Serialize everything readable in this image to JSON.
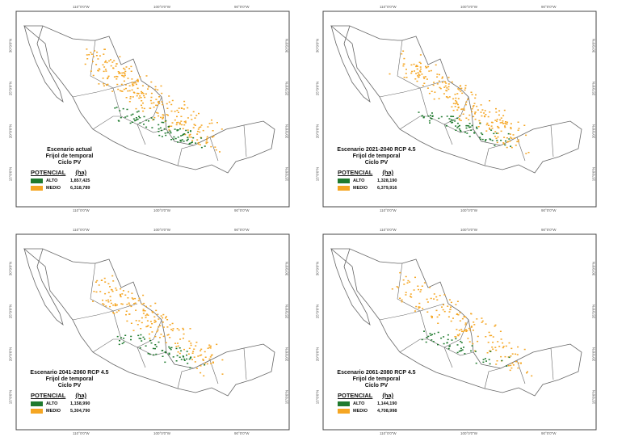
{
  "colors": {
    "alto": "#1f7a2e",
    "medio": "#f5a623",
    "border": "#666666"
  },
  "axis": {
    "lon": [
      "110°0'0\"W",
      "100°0'0\"W",
      "90°0'0\"W"
    ],
    "lat": [
      "30°0'0\"N",
      "25°0'0\"N",
      "20°0'0\"N",
      "15°0'0\"N"
    ]
  },
  "legend_header": {
    "potencial": "POTENCIAL",
    "unit": "(ha)"
  },
  "panels": [
    {
      "title": "Escenario actual",
      "crop": "Frijol de temporal",
      "cycle": "Ciclo PV",
      "items": [
        {
          "label": "ALTO",
          "value": "1,857,425"
        },
        {
          "label": "MEDIO",
          "value": "6,318,789"
        }
      ]
    },
    {
      "title": "Escenario 2021-2040 RCP 4.5",
      "crop": "Frijol de temporal",
      "cycle": "Ciclo PV",
      "items": [
        {
          "label": "ALTO",
          "value": "1,328,190"
        },
        {
          "label": "MEDIO",
          "value": "6,379,916"
        }
      ]
    },
    {
      "title": "Escenario 2041-2060 RCP 4.5",
      "crop": "Frijol de temporal",
      "cycle": "Ciclo PV",
      "items": [
        {
          "label": "ALTO",
          "value": "1,158,990"
        },
        {
          "label": "MEDIO",
          "value": "5,304,790"
        }
      ]
    },
    {
      "title": "Escenario 2061-2080 RCP 4.5",
      "crop": "Frijol de temporal",
      "cycle": "Ciclo PV",
      "items": [
        {
          "label": "ALTO",
          "value": "1,144,190"
        },
        {
          "label": "MEDIO",
          "value": "4,708,998"
        }
      ]
    }
  ]
}
